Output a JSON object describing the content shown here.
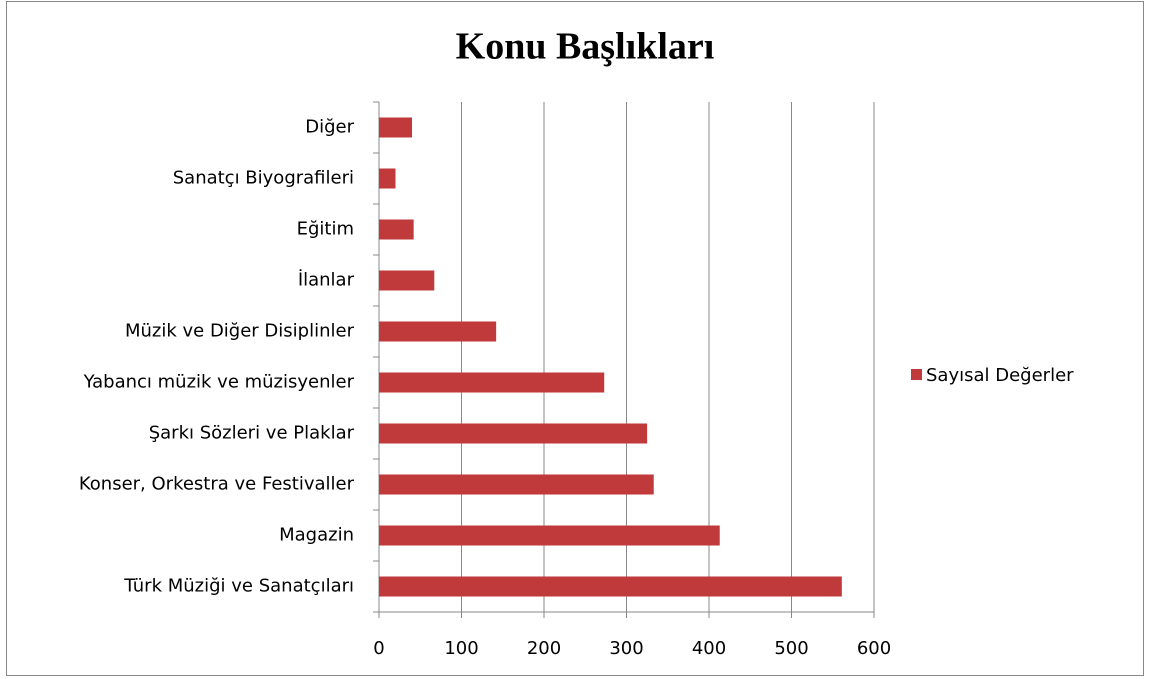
{
  "chart_data": {
    "type": "bar",
    "orientation": "horizontal",
    "title": "Konu Başlıkları",
    "categories": [
      "Diğer",
      "Sanatçı Biyografileri",
      "Eğitim",
      "İlanlar",
      "Müzik ve Diğer Disiplinler",
      "Yabancı müzik ve müzisyenler",
      "Şarkı Sözleri ve Plaklar",
      "Konser, Orkestra ve Festivaller",
      "Magazin",
      "Türk Müziği ve Sanatçıları"
    ],
    "series": [
      {
        "name": "Sayısal Değerler",
        "color": "#c0393b",
        "values": [
          40,
          20,
          42,
          67,
          142,
          273,
          325,
          333,
          413,
          561
        ]
      }
    ],
    "xlim": [
      0,
      600
    ],
    "xticks": [
      0,
      100,
      200,
      300,
      400,
      500,
      600
    ],
    "grid": true,
    "legend": "right"
  }
}
